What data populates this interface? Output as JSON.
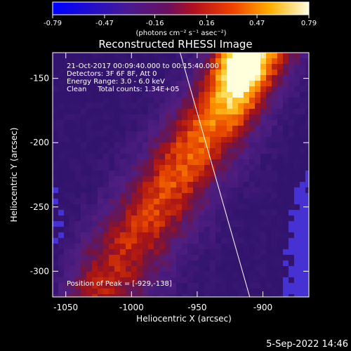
{
  "colorbar": {
    "ticks": [
      "-0.79",
      "-0.47",
      "-0.16",
      "0.16",
      "0.47",
      "0.79"
    ],
    "tick_values": [
      -0.79,
      -0.47,
      -0.16,
      0.16,
      0.47,
      0.79
    ],
    "range": [
      -0.79,
      0.79
    ],
    "units": "(photons cm⁻² s⁻¹ asec⁻²)"
  },
  "image": {
    "title": "Reconstructed RHESSI Image",
    "info_lines": [
      "21-Oct-2017 00:09:40.000 to 00:15:40.000",
      "Detectors: 3F 6F 8F, Att 0",
      "Energy Range: 3.0 - 6.0 keV",
      "Clean     Total counts: 1.34E+05"
    ],
    "peak_text": "Position of Peak = [-929,-138]",
    "peak_position": [
      -929,
      -138
    ],
    "xlabel": "Heliocentric X (arcsec)",
    "ylabel": "Heliocentric Y (arcsec)",
    "x_ticks": [
      "-1050",
      "-1000",
      "-950",
      "-900"
    ],
    "x_tick_values": [
      -1050,
      -1000,
      -950,
      -900
    ],
    "y_ticks": [
      "-150",
      "-200",
      "-250",
      "-300"
    ],
    "y_tick_values": [
      -150,
      -200,
      -250,
      -300
    ],
    "xlim": [
      -1060,
      -865
    ],
    "ylim": [
      -320,
      -130
    ],
    "limb_line": {
      "x": [
        -963,
        -910
      ],
      "y": [
        -130,
        -320
      ]
    }
  },
  "footer": {
    "timestamp": "5-Sep-2022 14:46"
  }
}
